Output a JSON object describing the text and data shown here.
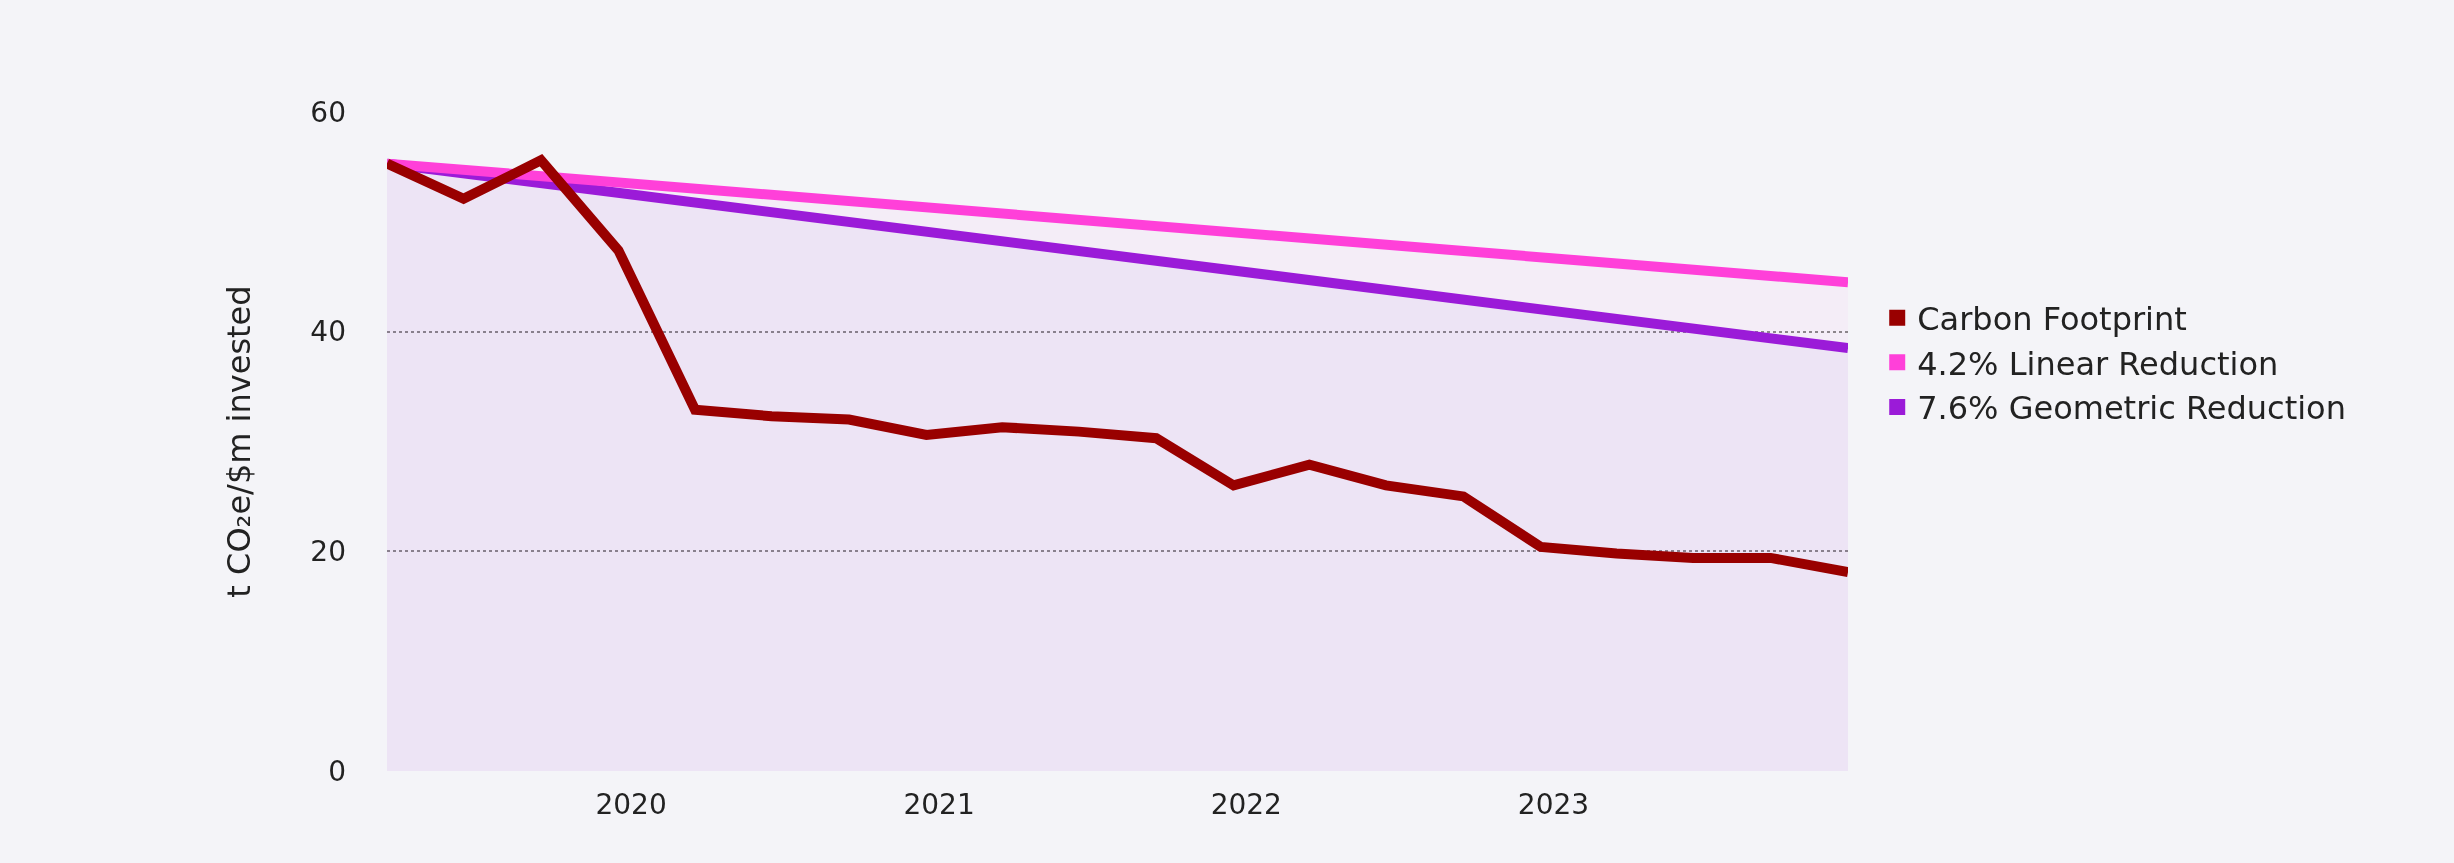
{
  "chart_data": {
    "type": "line",
    "ylabel": "t CO₂e/$m invested",
    "x": [
      "2019-03-31",
      "2019-06-30",
      "2019-09-30",
      "2019-12-31",
      "2020-03-31",
      "2020-06-30",
      "2020-09-30",
      "2020-12-31",
      "2021-03-31",
      "2021-06-30",
      "2021-09-30",
      "2021-12-31",
      "2022-03-31",
      "2022-06-30",
      "2022-09-30",
      "2022-12-31",
      "2023-03-31",
      "2023-06-30",
      "2023-09-30",
      "2023-12-31"
    ],
    "series": [
      {
        "name": "Carbon Footprint",
        "color": "#990000",
        "values": [
          55.3,
          52.1,
          55.6,
          47.4,
          32.9,
          32.3,
          32.0,
          30.6,
          31.3,
          30.9,
          30.3,
          26.0,
          27.9,
          26.0,
          25.0,
          20.4,
          19.8,
          19.4,
          19.4,
          18.1
        ]
      },
      {
        "name": "4.2% Linear Reduction",
        "color": "#ff40d9",
        "type": "area",
        "x": [
          "2019-03-31",
          "2023-12-31"
        ],
        "values": [
          55.3,
          44.5
        ]
      },
      {
        "name": "7.6% Geometric Reduction",
        "color": "#9b1bd8",
        "type": "area",
        "x": [
          "2019-03-31",
          "2023-12-31"
        ],
        "values": [
          55.3,
          38.5
        ]
      }
    ],
    "xlim": [
      "2019-03-31",
      "2023-12-31"
    ],
    "xticks": [
      {
        "value": "2020-01-15",
        "label": "2020"
      },
      {
        "value": "2021-01-15",
        "label": "2021"
      },
      {
        "value": "2022-01-15",
        "label": "2022"
      },
      {
        "value": "2023-01-15",
        "label": "2023"
      }
    ],
    "ylim": [
      0,
      60
    ],
    "yticks": [
      0,
      20,
      40,
      60
    ],
    "grid": "y",
    "legend": "right",
    "line_style": "solid",
    "marker": "none"
  }
}
